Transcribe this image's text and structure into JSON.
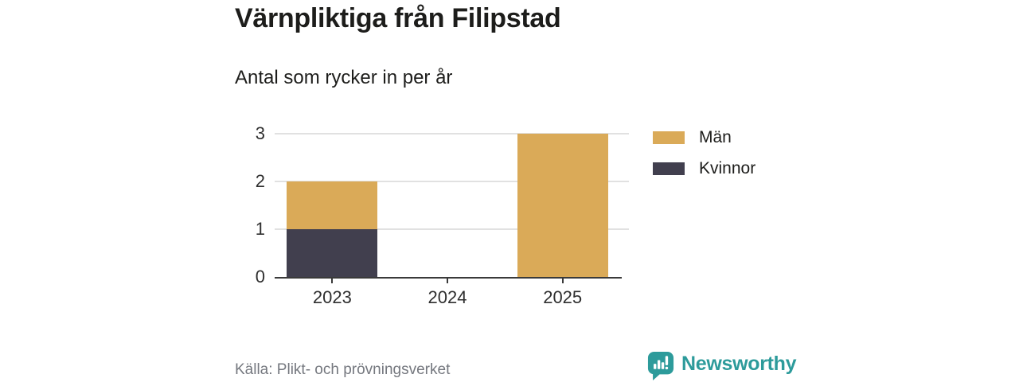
{
  "title": "Värnpliktiga från Filipstad",
  "subtitle": "Antal som rycker in per år",
  "chart_data": {
    "type": "bar",
    "stacked": true,
    "title": "Värnpliktiga från Filipstad",
    "subtitle": "Antal som rycker in per år",
    "categories": [
      "2023",
      "2024",
      "2025"
    ],
    "series": [
      {
        "name": "Män",
        "color": "#DAAA58",
        "values": [
          1,
          0,
          3
        ]
      },
      {
        "name": "Kvinnor",
        "color": "#413F4E",
        "values": [
          1,
          0,
          0
        ]
      }
    ],
    "stack_totals": [
      2,
      0,
      3
    ],
    "ylim": [
      0,
      3
    ],
    "yticks": [
      0,
      1,
      2,
      3
    ],
    "xlabel": "",
    "ylabel": "",
    "grid": true,
    "legend_position": "right"
  },
  "footer": {
    "source": "Källa: Plikt- och prövningsverket",
    "brand": "Newsworthy"
  },
  "colors": {
    "men": "#DAAA58",
    "women": "#413F4E",
    "brand_teal": "#2D9B9B",
    "grid": "#E1E1E1",
    "axis": "#3A3A3A",
    "text": "#1D1D1B",
    "muted_text": "#75787F",
    "background": "#FFFFFF"
  }
}
